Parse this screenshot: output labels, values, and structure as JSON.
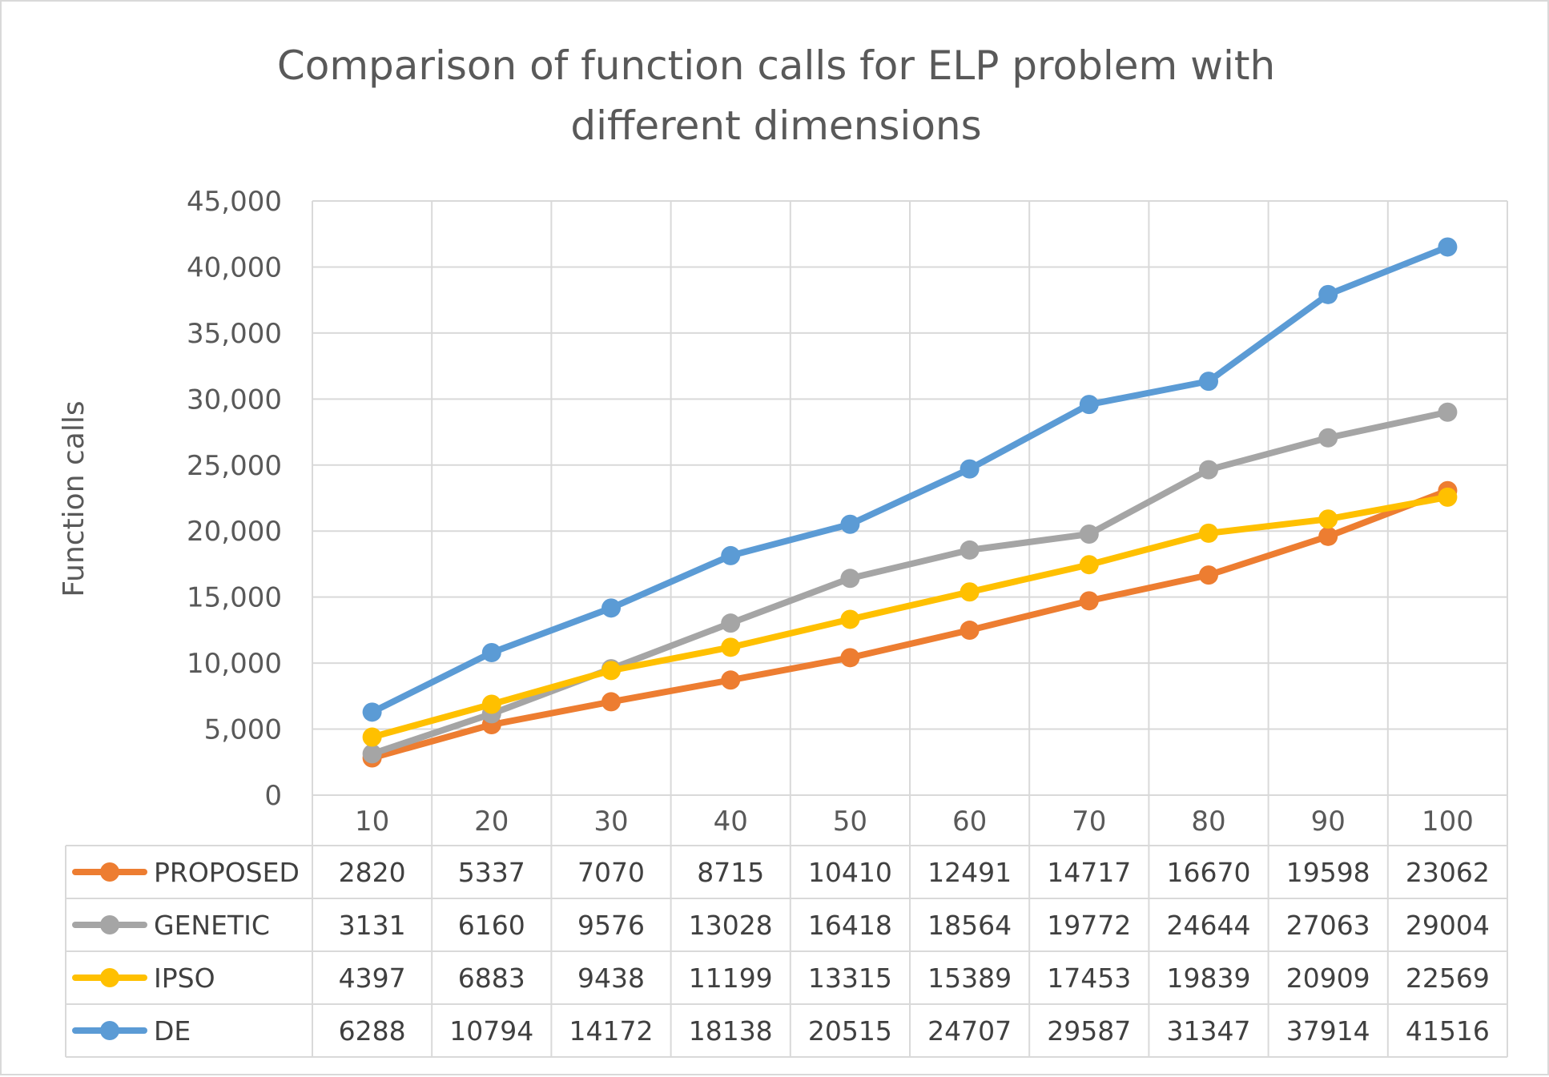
{
  "chart_data": {
    "type": "line",
    "title_lines": [
      "Comparison of function calls for ELP problem with",
      "different dimensions"
    ],
    "xlabel": "",
    "ylabel": "Function calls",
    "ylim": [
      0,
      45000
    ],
    "yticks": [
      "0",
      "5,000",
      "10,000",
      "15,000",
      "20,000",
      "25,000",
      "30,000",
      "35,000",
      "40,000",
      "45,000"
    ],
    "yticks_values": [
      0,
      5000,
      10000,
      15000,
      20000,
      25000,
      30000,
      35000,
      40000,
      45000
    ],
    "categories": [
      "10",
      "20",
      "30",
      "40",
      "50",
      "60",
      "70",
      "80",
      "90",
      "100"
    ],
    "grid": true,
    "legend_placement": "data-table",
    "series": [
      {
        "name": "PROPOSED",
        "color": "#ed7d31",
        "values": [
          2820,
          5337,
          7070,
          8715,
          10410,
          12491,
          14717,
          16670,
          19598,
          23062
        ]
      },
      {
        "name": "GENETIC",
        "color": "#a5a5a5",
        "values": [
          3131,
          6160,
          9576,
          13028,
          16418,
          18564,
          19772,
          24644,
          27063,
          29004
        ]
      },
      {
        "name": "IPSO",
        "color": "#ffc000",
        "values": [
          4397,
          6883,
          9438,
          11199,
          13315,
          15389,
          17453,
          19839,
          20909,
          22569
        ]
      },
      {
        "name": "DE",
        "color": "#5b9bd5",
        "values": [
          6288,
          10794,
          14172,
          18138,
          20515,
          24707,
          29587,
          31347,
          37914,
          41516
        ]
      }
    ]
  }
}
